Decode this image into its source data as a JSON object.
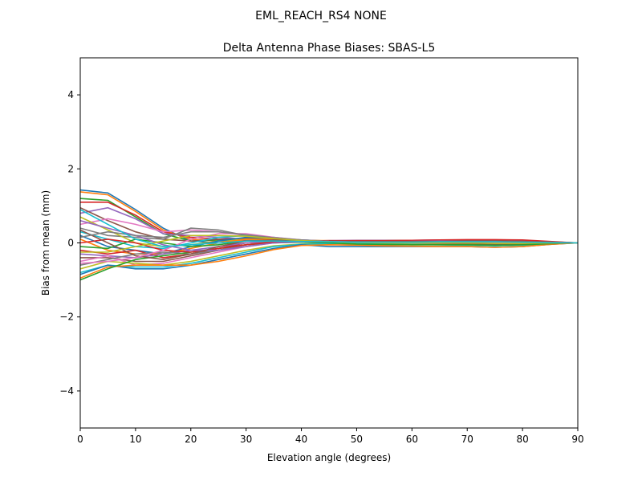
{
  "chart_data": {
    "type": "line",
    "suptitle": "EML_REACH_RS4   NONE",
    "title": "Delta Antenna Phase Biases: SBAS-L5",
    "xlabel": "Elevation angle (degrees)",
    "ylabel": "Bias from mean (mm)",
    "xlim": [
      0,
      90
    ],
    "ylim": [
      -5,
      5
    ],
    "xticks": [
      0,
      10,
      20,
      30,
      40,
      50,
      60,
      70,
      80,
      90
    ],
    "yticks": [
      -4,
      -2,
      0,
      2,
      4
    ],
    "ytick_labels": [
      "−4",
      "−2",
      "0",
      "2",
      "4"
    ],
    "grid": false,
    "x": [
      0,
      5,
      10,
      15,
      20,
      25,
      30,
      35,
      40,
      45,
      50,
      55,
      60,
      65,
      70,
      75,
      80,
      85,
      90
    ],
    "colors": [
      "#1f77b4",
      "#ff7f0e",
      "#2ca02c",
      "#d62728",
      "#9467bd",
      "#8c564b",
      "#e377c2",
      "#7f7f7f",
      "#bcbd22",
      "#17becf"
    ],
    "series": [
      {
        "values": [
          1.43,
          1.35,
          0.9,
          0.4,
          0.05,
          0.0,
          0.05,
          0.05,
          0.03,
          0.0,
          -0.02,
          -0.03,
          -0.03,
          -0.02,
          -0.02,
          -0.03,
          -0.03,
          0.0,
          0
        ]
      },
      {
        "values": [
          1.38,
          1.3,
          0.85,
          0.35,
          0.1,
          0.05,
          0.05,
          0.05,
          0.02,
          0.0,
          -0.01,
          -0.02,
          -0.02,
          -0.02,
          -0.02,
          -0.03,
          -0.02,
          0.0,
          0
        ]
      },
      {
        "values": [
          1.2,
          1.15,
          0.7,
          0.25,
          0.05,
          0.08,
          0.1,
          0.08,
          0.05,
          0.03,
          0.02,
          0.02,
          0.02,
          0.02,
          0.03,
          0.03,
          0.03,
          0.01,
          0
        ]
      },
      {
        "values": [
          1.1,
          1.1,
          0.75,
          0.3,
          0.15,
          0.1,
          0.08,
          0.05,
          0.03,
          0.02,
          0.02,
          0.03,
          0.04,
          0.05,
          0.05,
          0.05,
          0.04,
          0.02,
          0
        ]
      },
      {
        "values": [
          0.8,
          0.95,
          0.65,
          0.25,
          0.2,
          0.15,
          0.1,
          0.06,
          0.04,
          0.03,
          0.03,
          0.03,
          0.04,
          0.05,
          0.06,
          0.06,
          0.05,
          0.02,
          0
        ]
      },
      {
        "values": [
          0.95,
          0.6,
          0.3,
          0.1,
          0.05,
          0.1,
          0.12,
          0.1,
          0.05,
          0.02,
          0.0,
          -0.02,
          -0.02,
          -0.02,
          -0.02,
          -0.03,
          -0.02,
          0.0,
          0
        ]
      },
      {
        "values": [
          0.5,
          0.65,
          0.5,
          0.3,
          0.35,
          0.3,
          0.2,
          0.1,
          0.05,
          0.02,
          0.01,
          0.01,
          0.02,
          0.03,
          0.04,
          0.04,
          0.03,
          0.01,
          0
        ]
      },
      {
        "values": [
          0.4,
          0.2,
          0.15,
          0.1,
          0.4,
          0.35,
          0.2,
          0.12,
          0.06,
          0.02,
          0.0,
          -0.01,
          -0.01,
          -0.01,
          0.0,
          0.0,
          0.0,
          0.0,
          0
        ]
      },
      {
        "values": [
          0.7,
          0.35,
          0.0,
          -0.1,
          -0.05,
          0.05,
          0.1,
          0.08,
          0.05,
          0.02,
          0.01,
          0.0,
          0.0,
          0.0,
          0.01,
          0.0,
          0.0,
          0.0,
          0
        ]
      },
      {
        "values": [
          0.3,
          0.1,
          -0.1,
          -0.15,
          0.0,
          0.15,
          0.2,
          0.15,
          0.07,
          0.03,
          0.02,
          0.02,
          0.03,
          0.04,
          0.05,
          0.04,
          0.03,
          0.01,
          0
        ]
      },
      {
        "values": [
          0.2,
          -0.1,
          -0.2,
          -0.3,
          -0.1,
          0.05,
          0.15,
          0.12,
          0.08,
          0.05,
          0.04,
          0.04,
          0.05,
          0.06,
          0.07,
          0.06,
          0.05,
          0.02,
          0
        ]
      },
      {
        "values": [
          0.1,
          -0.2,
          -0.3,
          -0.3,
          -0.15,
          0.0,
          0.1,
          0.1,
          0.07,
          0.06,
          0.05,
          0.05,
          0.06,
          0.07,
          0.08,
          0.07,
          0.06,
          0.03,
          0
        ]
      },
      {
        "values": [
          -0.1,
          -0.15,
          0.1,
          0.0,
          -0.1,
          -0.05,
          0.05,
          0.05,
          0.05,
          0.04,
          0.03,
          0.03,
          0.04,
          0.05,
          0.06,
          0.05,
          0.04,
          0.02,
          0
        ]
      },
      {
        "values": [
          -0.2,
          -0.3,
          -0.2,
          -0.4,
          -0.3,
          -0.15,
          0.0,
          0.05,
          0.04,
          0.03,
          0.02,
          0.02,
          0.03,
          0.03,
          0.04,
          0.04,
          0.03,
          0.01,
          0
        ]
      },
      {
        "values": [
          -0.3,
          -0.35,
          -0.4,
          -0.3,
          -0.2,
          -0.1,
          0.0,
          0.05,
          0.05,
          0.06,
          0.07,
          0.07,
          0.07,
          0.08,
          0.08,
          0.08,
          0.06,
          0.03,
          0
        ]
      },
      {
        "values": [
          -0.4,
          -0.4,
          -0.5,
          -0.5,
          -0.35,
          -0.2,
          -0.05,
          0.02,
          0.04,
          0.05,
          0.06,
          0.06,
          0.07,
          0.07,
          0.07,
          0.06,
          0.05,
          0.02,
          0
        ]
      },
      {
        "values": [
          -0.5,
          -0.35,
          -0.6,
          -0.55,
          -0.4,
          -0.25,
          -0.1,
          0.0,
          0.02,
          0.03,
          0.03,
          0.03,
          0.03,
          0.03,
          0.03,
          0.03,
          0.02,
          0.01,
          0
        ]
      },
      {
        "values": [
          -0.6,
          -0.45,
          -0.3,
          -0.25,
          -0.3,
          -0.2,
          -0.05,
          0.05,
          0.05,
          0.0,
          -0.05,
          -0.05,
          -0.05,
          -0.05,
          -0.06,
          -0.07,
          -0.06,
          -0.02,
          0
        ]
      },
      {
        "values": [
          -0.7,
          -0.5,
          -0.55,
          -0.6,
          -0.5,
          -0.35,
          -0.2,
          -0.08,
          -0.03,
          0.0,
          0.01,
          0.01,
          0.0,
          0.0,
          0.0,
          -0.01,
          -0.01,
          0.0,
          0
        ]
      },
      {
        "values": [
          -0.8,
          -0.6,
          -0.65,
          -0.65,
          -0.55,
          -0.4,
          -0.25,
          -0.1,
          -0.04,
          -0.02,
          -0.02,
          -0.03,
          -0.04,
          -0.05,
          -0.06,
          -0.08,
          -0.06,
          -0.02,
          0
        ]
      },
      {
        "values": [
          -0.85,
          -0.6,
          -0.7,
          -0.7,
          -0.6,
          -0.45,
          -0.3,
          -0.15,
          -0.05,
          -0.1,
          -0.1,
          -0.1,
          -0.1,
          -0.1,
          -0.1,
          -0.12,
          -0.1,
          -0.04,
          0
        ]
      },
      {
        "values": [
          -0.95,
          -0.65,
          -0.6,
          -0.6,
          -0.6,
          -0.5,
          -0.35,
          -0.18,
          -0.07,
          -0.05,
          -0.06,
          -0.08,
          -0.09,
          -0.1,
          -0.1,
          -0.12,
          -0.1,
          -0.04,
          0
        ]
      },
      {
        "values": [
          -1.0,
          -0.7,
          -0.45,
          -0.35,
          -0.25,
          -0.15,
          -0.05,
          0.0,
          0.02,
          0.0,
          -0.03,
          -0.04,
          -0.05,
          -0.05,
          -0.05,
          -0.06,
          -0.05,
          -0.02,
          0
        ]
      },
      {
        "values": [
          0.0,
          0.1,
          0.0,
          -0.2,
          -0.25,
          -0.15,
          -0.05,
          0.02,
          0.05,
          0.06,
          0.06,
          0.06,
          0.07,
          0.08,
          0.09,
          0.09,
          0.08,
          0.04,
          0
        ]
      },
      {
        "values": [
          0.6,
          0.4,
          0.2,
          -0.05,
          -0.2,
          -0.2,
          -0.1,
          0.0,
          0.03,
          0.03,
          0.03,
          0.03,
          0.04,
          0.05,
          0.05,
          0.05,
          0.04,
          0.02,
          0
        ]
      },
      {
        "values": [
          0.35,
          0.0,
          -0.35,
          -0.45,
          -0.3,
          -0.1,
          0.05,
          0.08,
          0.06,
          0.05,
          0.04,
          0.04,
          0.04,
          0.04,
          0.05,
          0.05,
          0.04,
          0.02,
          0
        ]
      },
      {
        "values": [
          -0.55,
          -0.5,
          -0.4,
          -0.2,
          0.1,
          0.25,
          0.25,
          0.15,
          0.08,
          0.04,
          0.02,
          0.01,
          0.01,
          0.01,
          0.01,
          0.0,
          0.0,
          0.0,
          0
        ]
      },
      {
        "values": [
          0.15,
          0.3,
          0.2,
          0.15,
          0.3,
          0.3,
          0.22,
          0.14,
          0.08,
          0.04,
          0.02,
          0.02,
          0.02,
          0.03,
          0.03,
          0.03,
          0.02,
          0.01,
          0
        ]
      },
      {
        "values": [
          -0.25,
          -0.25,
          -0.1,
          0.05,
          0.2,
          0.2,
          0.18,
          0.12,
          0.06,
          0.03,
          0.01,
          0.0,
          0.0,
          0.0,
          0.0,
          -0.01,
          -0.01,
          0.0,
          0
        ]
      },
      {
        "values": [
          0.9,
          0.5,
          0.1,
          -0.1,
          -0.05,
          0.0,
          0.05,
          0.05,
          0.04,
          0.03,
          0.02,
          0.02,
          0.02,
          0.03,
          0.03,
          0.03,
          0.02,
          0.01,
          0
        ]
      }
    ]
  }
}
